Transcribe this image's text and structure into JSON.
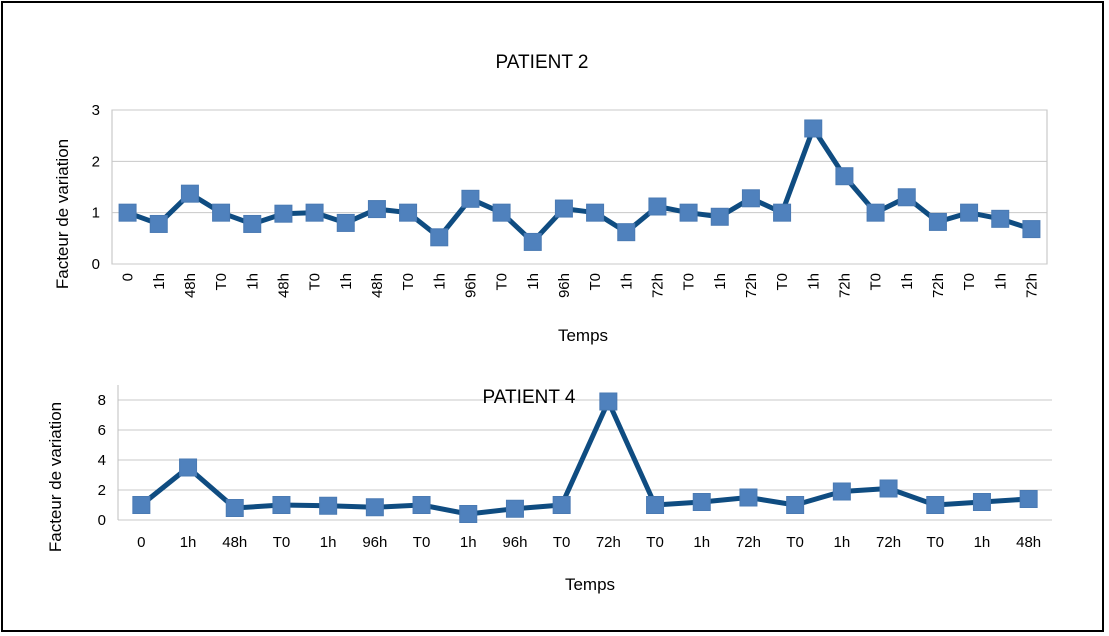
{
  "chart_data": [
    {
      "type": "line",
      "title": "PATIENT 2",
      "xlabel": "Temps",
      "ylabel": "Facteur de variation",
      "ylim": [
        0,
        3
      ],
      "yticks": [
        0,
        1,
        2,
        3
      ],
      "grid": true,
      "colors": {
        "line": "#0f4c81",
        "marker": "#4f81bd"
      },
      "categories": [
        "0",
        "1h",
        "48h",
        "T0",
        "1h",
        "48h",
        "T0",
        "1h",
        "48h",
        "T0",
        "1h",
        "96h",
        "T0",
        "1h",
        "96h",
        "T0",
        "1h",
        "72h",
        "T0",
        "1h",
        "72h",
        "T0",
        "1h",
        "72h",
        "T0",
        "1h",
        "72h",
        "T0",
        "1h",
        "72h"
      ],
      "values": [
        1.0,
        0.78,
        1.37,
        1.0,
        0.78,
        0.98,
        1.0,
        0.8,
        1.07,
        1.0,
        0.52,
        1.27,
        1.0,
        0.43,
        1.08,
        1.0,
        0.62,
        1.12,
        1.0,
        0.92,
        1.28,
        1.0,
        2.64,
        1.71,
        1.0,
        1.3,
        0.82,
        1.0,
        0.88,
        0.68
      ]
    },
    {
      "type": "line",
      "title": "PATIENT 4",
      "xlabel": "Temps",
      "ylabel": "Facteur de variation",
      "ylim": [
        0,
        9
      ],
      "yticks": [
        0,
        2,
        4,
        6,
        8
      ],
      "grid": true,
      "colors": {
        "line": "#0f4c81",
        "marker": "#4f81bd"
      },
      "categories": [
        "0",
        "1h",
        "48h",
        "T0",
        "1h",
        "96h",
        "T0",
        "1h",
        "96h",
        "T0",
        "72h",
        "T0",
        "1h",
        "72h",
        "T0",
        "1h",
        "72h",
        "T0",
        "1h",
        "48h"
      ],
      "values": [
        1.0,
        3.5,
        0.8,
        1.0,
        0.95,
        0.85,
        1.0,
        0.4,
        0.75,
        1.0,
        7.9,
        1.0,
        1.2,
        1.5,
        1.0,
        1.9,
        2.1,
        1.0,
        1.2,
        1.4
      ]
    }
  ]
}
